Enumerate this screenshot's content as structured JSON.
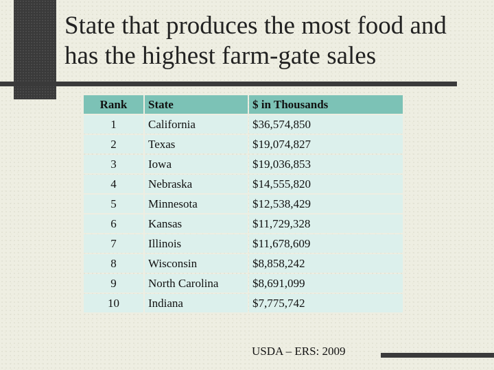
{
  "title": "State that produces the most food and has the highest farm-gate sales",
  "table": {
    "headers": {
      "rank": "Rank",
      "state": "State",
      "value": "$ in Thousands"
    },
    "rows": [
      {
        "rank": "1",
        "state": "California",
        "value": "$36,574,850"
      },
      {
        "rank": "2",
        "state": "Texas",
        "value": "$19,074,827"
      },
      {
        "rank": "3",
        "state": "Iowa",
        "value": "$19,036,853"
      },
      {
        "rank": "4",
        "state": "Nebraska",
        "value": "$14,555,820"
      },
      {
        "rank": "5",
        "state": "Minnesota",
        "value": "$12,538,429"
      },
      {
        "rank": "6",
        "state": "Kansas",
        "value": "$11,729,328"
      },
      {
        "rank": "7",
        "state": "Illinois",
        "value": "$11,678,609"
      },
      {
        "rank": "8",
        "state": "Wisconsin",
        "value": "$8,858,242"
      },
      {
        "rank": "9",
        "state": "North Carolina",
        "value": "$8,691,099"
      },
      {
        "rank": "10",
        "state": "Indiana",
        "value": "$7,775,742"
      }
    ]
  },
  "source": "USDA – ERS: 2009",
  "colors": {
    "background": "#eeeee2",
    "dark_accent": "#3a3a3a",
    "header_fill": "#7cc2b6",
    "cell_fill": "#dcf0ec"
  }
}
